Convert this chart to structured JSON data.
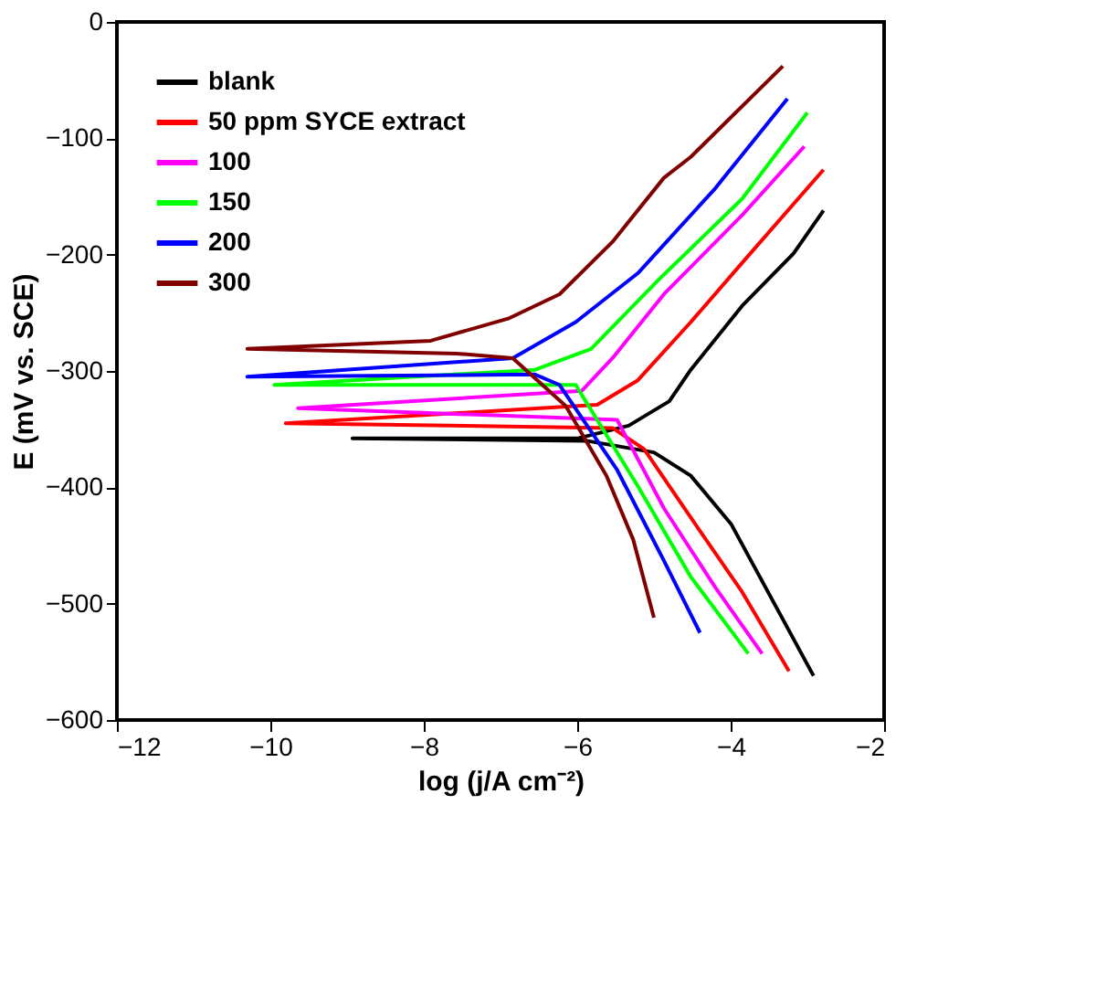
{
  "chart_data": {
    "type": "line",
    "xlabel": "log (j/A cm⁻²)",
    "ylabel": "E (mV vs. SCE)",
    "xlim": [
      -12,
      -2
    ],
    "xticks": [
      -12,
      -10,
      -8,
      -6,
      -4,
      -2
    ],
    "ylim": [
      -600,
      0
    ],
    "yticks": [
      -600,
      -500,
      -400,
      -300,
      -200,
      -100,
      0
    ],
    "grid": false,
    "legend": "top left",
    "marker": "none",
    "line_style": "solid",
    "series": [
      {
        "name": "blank",
        "color": "#000000",
        "x": [
          -2.92,
          -3.99,
          -4.52,
          -5.0,
          -5.88,
          -8.93,
          -6.0,
          -5.33,
          -4.8,
          -4.52,
          -3.85,
          -3.18,
          -2.79
        ],
        "values": [
          -562,
          -432,
          -390,
          -370,
          -360,
          -358,
          -358,
          -347,
          -326,
          -299,
          -244,
          -199,
          -162
        ]
      },
      {
        "name": "50 ppm SYCE extract",
        "color": "#ff0000",
        "x": [
          -3.24,
          -3.85,
          -4.52,
          -5.13,
          -5.54,
          -9.8,
          -5.74,
          -5.21,
          -4.52,
          -3.85,
          -2.79
        ],
        "values": [
          -558,
          -490,
          -426,
          -367,
          -349,
          -345,
          -329,
          -308,
          -258,
          -207,
          -127
        ]
      },
      {
        "name": "100",
        "color": "#ff00ff",
        "x": [
          -3.59,
          -4.2,
          -4.87,
          -5.48,
          -9.64,
          -5.94,
          -5.54,
          -4.87,
          -3.85,
          -3.04
        ],
        "values": [
          -543,
          -486,
          -418,
          -342,
          -332,
          -317,
          -289,
          -234,
          -166,
          -107
        ]
      },
      {
        "name": "150",
        "color": "#00ff00",
        "x": [
          -3.77,
          -4.52,
          -5.21,
          -6.02,
          -9.95,
          -6.55,
          -5.82,
          -4.93,
          -3.85,
          -3.0
        ],
        "values": [
          -543,
          -477,
          -399,
          -312,
          -312,
          -299,
          -281,
          -221,
          -152,
          -78
        ]
      },
      {
        "name": "200",
        "color": "#0000ff",
        "x": [
          -4.4,
          -4.87,
          -5.48,
          -6.23,
          -6.55,
          -10.3,
          -6.84,
          -6.02,
          -5.21,
          -4.2,
          -3.26
        ],
        "values": [
          -525,
          -463,
          -385,
          -312,
          -303,
          -305,
          -289,
          -258,
          -216,
          -143,
          -66
        ]
      },
      {
        "name": "300",
        "color": "#800000",
        "x": [
          -5.0,
          -5.27,
          -5.62,
          -6.15,
          -6.84,
          -7.57,
          -10.3,
          -7.91,
          -6.9,
          -6.23,
          -5.54,
          -4.87,
          -4.52,
          -3.32
        ],
        "values": [
          -512,
          -445,
          -390,
          -330,
          -289,
          -285,
          -281,
          -274,
          -255,
          -234,
          -189,
          -134,
          -116,
          -38
        ]
      }
    ]
  }
}
